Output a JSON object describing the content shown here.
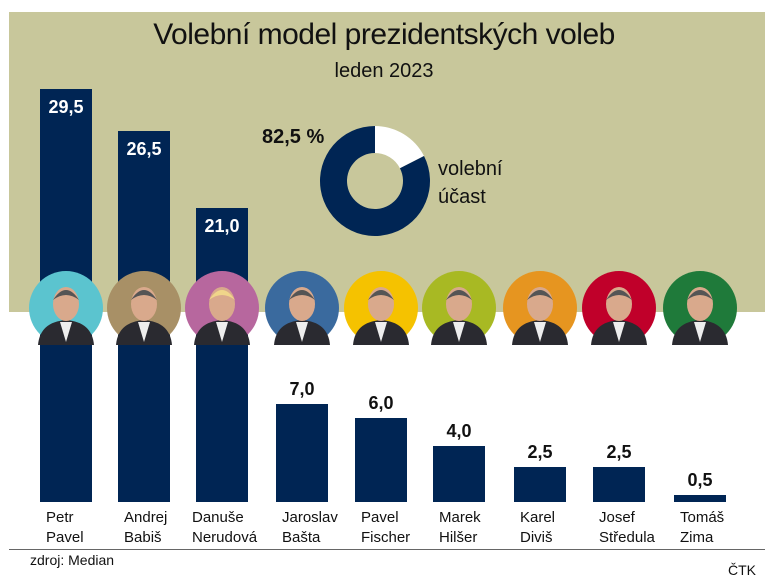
{
  "title": "Volební model prezidentských voleb",
  "subtitle": "leden 2023",
  "source": "zdroj: Median",
  "credit": "ČTK",
  "chart_data": [
    {
      "type": "bar",
      "categories": [
        "Petr Pavel",
        "Andrej Babiš",
        "Danuše Nerudová",
        "Jaroslav Bašta",
        "Pavel Fischer",
        "Marek Hilšer",
        "Karel Diviš",
        "Josef Středula",
        "Tomáš Zima"
      ],
      "labels": [
        [
          "Petr",
          "Pavel"
        ],
        [
          "Andrej",
          "Babiš"
        ],
        [
          "Danuše",
          "Nerudová"
        ],
        [
          "Jaroslav",
          "Bašta"
        ],
        [
          "Pavel",
          "Fischer"
        ],
        [
          "Marek",
          "Hilšer"
        ],
        [
          "Karel",
          "Diviš"
        ],
        [
          "Josef",
          "Středula"
        ],
        [
          "Tomáš",
          "Zima"
        ]
      ],
      "values": [
        29.5,
        26.5,
        21.0,
        7.0,
        6.0,
        4.0,
        2.5,
        2.5,
        0.5
      ],
      "value_labels": [
        "29,5",
        "26,5",
        "21,0",
        "7,0",
        "6,0",
        "4,0",
        "2,5",
        "2,5",
        "0,5"
      ],
      "bar_color": "#002554",
      "portrait_colors": [
        "#5bc4cf",
        "#a89066",
        "#b7679e",
        "#3a6a9e",
        "#f5c200",
        "#a8b923",
        "#e69520",
        "#c0002a",
        "#1f7a3a"
      ],
      "background_color": "#c8c79b"
    },
    {
      "type": "pie",
      "donut": true,
      "values": [
        82.5,
        17.5
      ],
      "value_label": "82,5 %",
      "label_lines": [
        "volební",
        "účast"
      ],
      "colors": [
        "#002554",
        "#ffffff"
      ]
    }
  ]
}
